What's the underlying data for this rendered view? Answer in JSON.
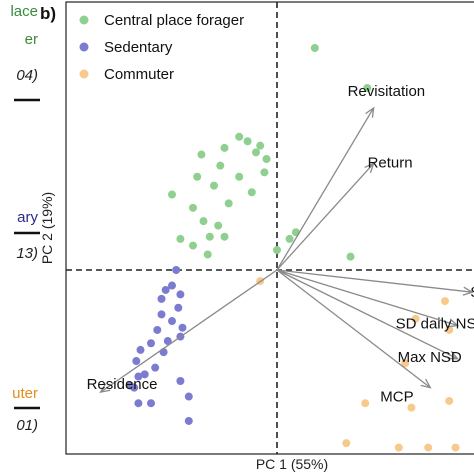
{
  "left_panel": {
    "fragments": [
      {
        "text": "lace",
        "color": "#3a8a3a",
        "italic": false
      },
      {
        "text": "er",
        "color": "#3a8a3a",
        "italic": false
      },
      {
        "text": "04)",
        "color": "#222222",
        "italic": true
      },
      {
        "text": "ary",
        "color": "#2b2b8a",
        "italic": false
      },
      {
        "text": "13)",
        "color": "#222222",
        "italic": true
      },
      {
        "text": "uter",
        "color": "#e0901a",
        "italic": false
      },
      {
        "text": "01)",
        "color": "#222222",
        "italic": true
      }
    ]
  },
  "panel_label": "b)",
  "colors": {
    "central": "#8fcf8f",
    "sedentary": "#7b7bcf",
    "commuter": "#f7c98a",
    "arrow": "#8a8a8a"
  },
  "chart_data": {
    "type": "scatter",
    "title": "",
    "xlabel": "PC 1 (55%)",
    "ylabel": "PC 2 (19%)",
    "xlim": [
      -1.0,
      0.9
    ],
    "ylim": [
      -0.93,
      1.13
    ],
    "grid": false,
    "reference_lines": {
      "x": 0,
      "y": 0,
      "style": "dashed"
    },
    "legend": {
      "position": "top-left",
      "entries": [
        "Central place forager",
        "Sedentary",
        "Commuter"
      ]
    },
    "series": [
      {
        "name": "Central place forager",
        "color": "#8fcf8f",
        "points": [
          [
            0.18,
            1.0
          ],
          [
            0.43,
            0.82
          ],
          [
            -0.18,
            0.6
          ],
          [
            -0.14,
            0.58
          ],
          [
            -0.25,
            0.55
          ],
          [
            -0.08,
            0.56
          ],
          [
            -0.36,
            0.52
          ],
          [
            -0.1,
            0.53
          ],
          [
            -0.05,
            0.5
          ],
          [
            -0.27,
            0.47
          ],
          [
            -0.3,
            0.38
          ],
          [
            -0.18,
            0.42
          ],
          [
            -0.06,
            0.44
          ],
          [
            -0.38,
            0.42
          ],
          [
            -0.12,
            0.35
          ],
          [
            -0.4,
            0.28
          ],
          [
            -0.5,
            0.34
          ],
          [
            -0.23,
            0.3
          ],
          [
            -0.35,
            0.22
          ],
          [
            -0.28,
            0.2
          ],
          [
            -0.32,
            0.15
          ],
          [
            -0.25,
            0.15
          ],
          [
            -0.4,
            0.11
          ],
          [
            -0.46,
            0.14
          ],
          [
            0.09,
            0.17
          ],
          [
            0.06,
            0.14
          ],
          [
            -0.33,
            0.07
          ],
          [
            0.0,
            0.09
          ],
          [
            0.35,
            0.06
          ]
        ]
      },
      {
        "name": "Sedentary",
        "color": "#7b7bcf",
        "points": [
          [
            -0.48,
            0.0
          ],
          [
            -0.5,
            -0.07
          ],
          [
            -0.53,
            -0.09
          ],
          [
            -0.46,
            -0.11
          ],
          [
            -0.55,
            -0.13
          ],
          [
            -0.47,
            -0.17
          ],
          [
            -0.55,
            -0.2
          ],
          [
            -0.5,
            -0.23
          ],
          [
            -0.45,
            -0.26
          ],
          [
            -0.57,
            -0.27
          ],
          [
            -0.46,
            -0.3
          ],
          [
            -0.52,
            -0.32
          ],
          [
            -0.6,
            -0.33
          ],
          [
            -0.65,
            -0.36
          ],
          [
            -0.54,
            -0.37
          ],
          [
            -0.67,
            -0.41
          ],
          [
            -0.58,
            -0.44
          ],
          [
            -0.63,
            -0.47
          ],
          [
            -0.66,
            -0.48
          ],
          [
            -0.68,
            -0.53
          ],
          [
            -0.66,
            -0.6
          ],
          [
            -0.6,
            -0.6
          ],
          [
            -0.46,
            -0.5
          ],
          [
            -0.42,
            -0.57
          ],
          [
            -0.42,
            -0.68
          ],
          [
            -0.7,
            -0.52
          ]
        ]
      },
      {
        "name": "Commuter",
        "color": "#f7c98a",
        "points": [
          [
            -0.08,
            -0.05
          ],
          [
            0.66,
            -0.22
          ],
          [
            0.8,
            -0.14
          ],
          [
            0.82,
            -0.27
          ],
          [
            0.61,
            -0.42
          ],
          [
            0.64,
            -0.62
          ],
          [
            0.82,
            -0.59
          ],
          [
            0.33,
            -0.78
          ],
          [
            0.58,
            -0.8
          ],
          [
            0.72,
            -0.8
          ],
          [
            0.42,
            -0.6
          ],
          [
            0.85,
            -0.8
          ]
        ]
      }
    ],
    "loadings": [
      {
        "label": "Revisitation",
        "x": 0.46,
        "y": 0.73
      },
      {
        "label": "Return",
        "x": 0.46,
        "y": 0.48
      },
      {
        "label": "SDD",
        "x": 0.93,
        "y": -0.1
      },
      {
        "label": "SD daily NSD",
        "x": 0.86,
        "y": -0.25
      },
      {
        "label": "Max NSD",
        "x": 0.86,
        "y": -0.4
      },
      {
        "label": "MCP",
        "x": 0.73,
        "y": -0.53
      },
      {
        "label": "Residence",
        "x": -0.84,
        "y": -0.55
      }
    ]
  }
}
